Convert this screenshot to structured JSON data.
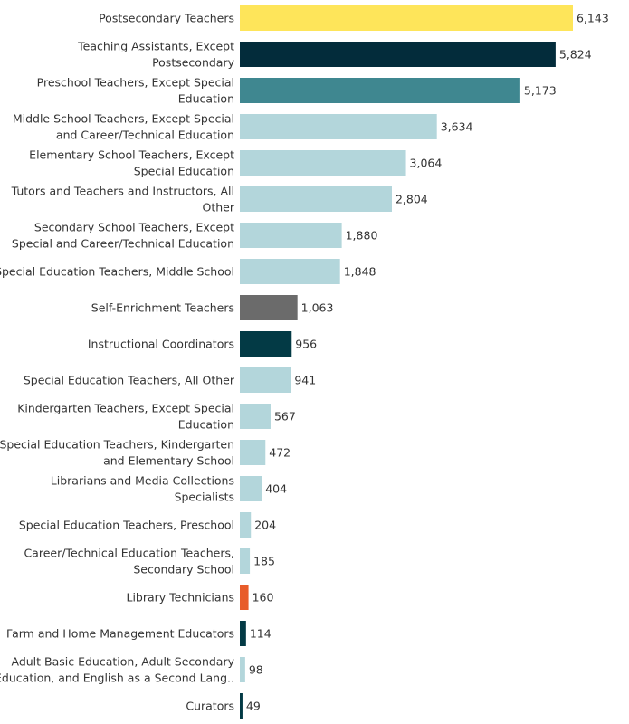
{
  "chart_data": {
    "type": "bar",
    "orientation": "horizontal",
    "grid": false,
    "legend": "none",
    "xlim": [
      0,
      6143
    ],
    "title": "",
    "xlabel": "",
    "ylabel": "",
    "categories": [
      [
        "Postsecondary Teachers"
      ],
      [
        "Teaching Assistants, Except",
        "Postsecondary"
      ],
      [
        "Preschool Teachers, Except Special",
        "Education"
      ],
      [
        "Middle School Teachers, Except Special",
        "and Career/Technical Education"
      ],
      [
        "Elementary School Teachers, Except",
        "Special Education"
      ],
      [
        "Tutors and Teachers and Instructors, All",
        "Other"
      ],
      [
        "Secondary School Teachers, Except",
        "Special and Career/Technical Education"
      ],
      [
        "Special Education Teachers, Middle School"
      ],
      [
        "Self-Enrichment Teachers"
      ],
      [
        "Instructional Coordinators"
      ],
      [
        "Special Education Teachers, All Other"
      ],
      [
        "Kindergarten Teachers, Except Special",
        "Education"
      ],
      [
        "Special Education Teachers, Kindergarten",
        "and Elementary School"
      ],
      [
        "Librarians and Media Collections",
        "Specialists"
      ],
      [
        "Special Education Teachers, Preschool"
      ],
      [
        "Career/Technical Education Teachers,",
        "Secondary School"
      ],
      [
        "Library Technicians"
      ],
      [
        "Farm and Home Management Educators"
      ],
      [
        "Adult Basic Education, Adult Secondary",
        "Education, and English as a Second Lang.."
      ],
      [
        "Curators"
      ]
    ],
    "values": [
      6143,
      5824,
      5173,
      3634,
      3064,
      2804,
      1880,
      1848,
      1063,
      956,
      941,
      567,
      472,
      404,
      204,
      185,
      160,
      114,
      98,
      49
    ],
    "value_labels": [
      "6,143",
      "5,824",
      "5,173",
      "3,634",
      "3,064",
      "2,804",
      "1,880",
      "1,848",
      "1,063",
      "956",
      "941",
      "567",
      "472",
      "404",
      "204",
      "185",
      "160",
      "114",
      "98",
      "49"
    ],
    "colors": [
      "#fee55a",
      "#032c3b",
      "#3f8790",
      "#b3d6db",
      "#b3d6db",
      "#b3d6db",
      "#b3d6db",
      "#b3d6db",
      "#6b6b6b",
      "#033a45",
      "#b3d6db",
      "#b3d6db",
      "#b3d6db",
      "#b3d6db",
      "#b3d6db",
      "#b3d6db",
      "#e85c2a",
      "#033a45",
      "#b3d6db",
      "#033a45"
    ]
  }
}
